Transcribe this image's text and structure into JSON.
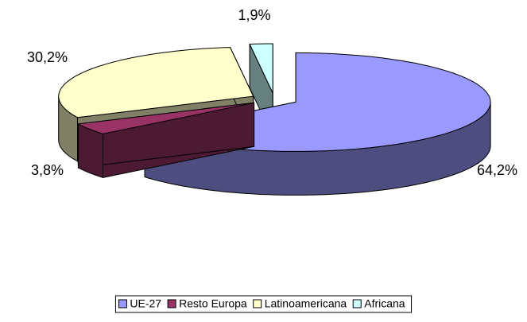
{
  "chart_data": {
    "type": "pie",
    "categories": [
      "UE-27",
      "Resto Europa",
      "Latinoamericana",
      "Africana"
    ],
    "values": [
      64.2,
      3.8,
      30.2,
      1.9
    ],
    "value_labels": [
      "64,2%",
      "3,8%",
      "30,2%",
      "1,9%"
    ],
    "colors": [
      "#9999ff",
      "#993366",
      "#ffffcc",
      "#ccffff"
    ],
    "legend": "bottom"
  }
}
